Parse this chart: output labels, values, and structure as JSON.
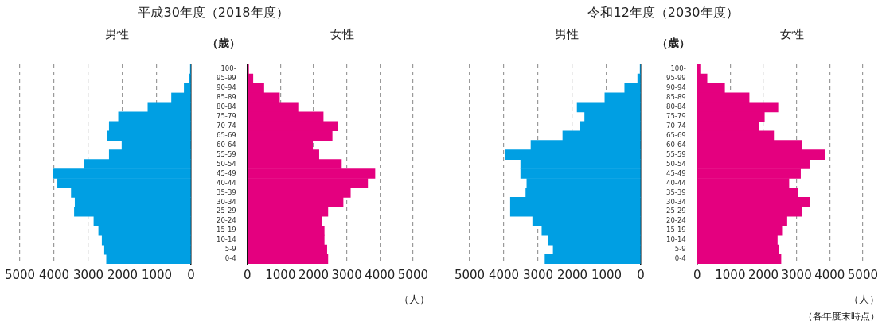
{
  "chart_data": [
    {
      "type": "bar",
      "orientation": "horizontal",
      "title": "平成30年度（2018年度）",
      "subtitle": "男性",
      "categories": [
        null,
        null,
        null,
        null,
        null,
        null,
        null,
        null,
        null,
        null,
        null,
        null,
        null,
        null,
        null,
        null,
        null,
        null,
        null,
        null,
        null
      ],
      "values": [
        20,
        60,
        200,
        570,
        1260,
        2120,
        2390,
        2440,
        2020,
        2390,
        3110,
        4020,
        3900,
        3500,
        3390,
        3410,
        2840,
        2700,
        2600,
        2530,
        2470
      ],
      "color": "#009fe3",
      "xlim": [
        5000,
        0
      ],
      "xticks": [
        5000,
        4000,
        3000,
        2000,
        1000,
        0
      ],
      "grid": "x"
    },
    {
      "type": "bar",
      "orientation": "horizontal",
      "subtitle": "女性",
      "ylabel": "（歳）",
      "xlabel": "（人）",
      "categories": [
        "100-",
        "95-99",
        "90-94",
        "85-89",
        "80-84",
        "75-79",
        "70-74",
        "65-69",
        "60-64",
        "55-59",
        "50-54",
        "45-49",
        "40-44",
        "35-39",
        "30-34",
        "25-29",
        "20-24",
        "15-19",
        "10-14",
        "5-9",
        "0-4"
      ],
      "values": [
        40,
        170,
        500,
        970,
        1530,
        2290,
        2730,
        2560,
        1970,
        2160,
        2840,
        3850,
        3630,
        3110,
        2890,
        2430,
        2240,
        2320,
        2320,
        2400,
        2430
      ],
      "color": "#e4007f",
      "xlim": [
        0,
        5000
      ],
      "xticks": [
        0,
        1000,
        2000,
        3000,
        4000,
        5000
      ],
      "grid": "x"
    },
    {
      "type": "bar",
      "orientation": "horizontal",
      "title": "令和12年度（2030年度）",
      "subtitle": "男性",
      "categories": [
        null,
        null,
        null,
        null,
        null,
        null,
        null,
        null,
        null,
        null,
        null,
        null,
        null,
        null,
        null,
        null,
        null,
        null,
        null,
        null,
        null
      ],
      "values": [
        20,
        90,
        470,
        1050,
        1860,
        1640,
        1780,
        2280,
        3210,
        3960,
        3510,
        3510,
        3330,
        3360,
        3810,
        3810,
        3160,
        2890,
        2700,
        2560,
        2800
      ],
      "color": "#009fe3",
      "xlim": [
        5000,
        0
      ],
      "xticks": [
        5000,
        4000,
        3000,
        2000,
        1000,
        0
      ],
      "grid": "x"
    },
    {
      "type": "bar",
      "orientation": "horizontal",
      "subtitle": "女性",
      "ylabel": "（歳）",
      "xlabel": "（人）",
      "annotations": [
        "（各年度末時点）"
      ],
      "categories": [
        "100-",
        "95-99",
        "90-94",
        "85-89",
        "80-84",
        "75-79",
        "70-74",
        "65-69",
        "60-64",
        "55-59",
        "50-54",
        "45-49",
        "40-44",
        "35-39",
        "30-34",
        "25-29",
        "20-24",
        "15-19",
        "10-14",
        "5-9",
        "0-4"
      ],
      "values": [
        90,
        300,
        830,
        1570,
        2440,
        2030,
        1850,
        2310,
        3150,
        3860,
        3390,
        3120,
        2770,
        3040,
        3390,
        3150,
        2710,
        2580,
        2420,
        2470,
        2530
      ],
      "color": "#e4007f",
      "xlim": [
        0,
        5000
      ],
      "xticks": [
        0,
        1000,
        2000,
        3000,
        4000,
        5000
      ],
      "grid": "x"
    }
  ]
}
